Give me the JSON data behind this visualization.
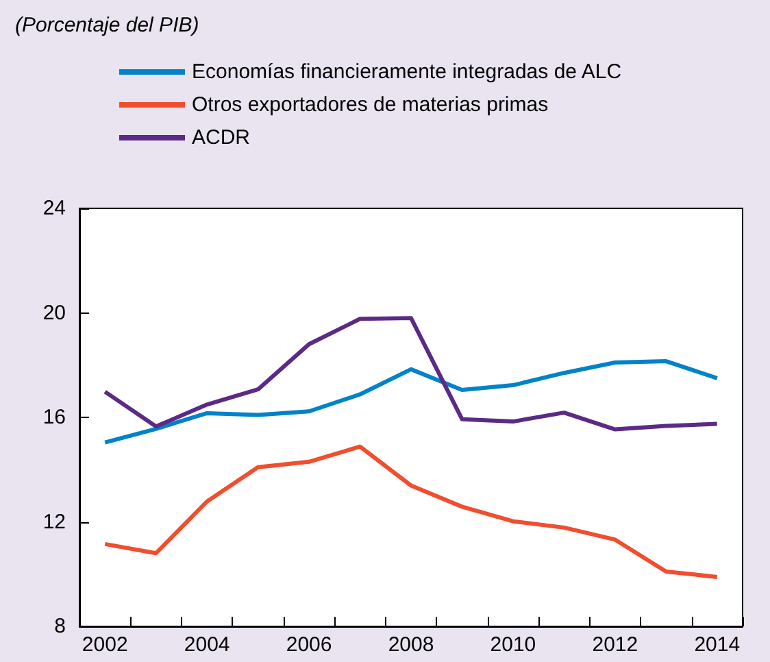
{
  "chart_data": {
    "type": "line",
    "subtitle": "(Porcentaje del PIB)",
    "categories": [
      "2002",
      null,
      "2004",
      null,
      "2006",
      null,
      "2008",
      null,
      "2010",
      null,
      "2012",
      null,
      "2014"
    ],
    "series": [
      {
        "name": "Economías financieramente integradas de ALC",
        "color": "#0083c9",
        "values": [
          15.04,
          15.56,
          16.16,
          16.09,
          16.23,
          16.88,
          17.84,
          17.05,
          17.23,
          17.7,
          18.1,
          18.15,
          17.5
        ]
      },
      {
        "name": "Otros exportadores de materias primas",
        "color": "#f04e2f",
        "values": [
          11.15,
          10.8,
          12.78,
          14.09,
          14.3,
          14.88,
          13.39,
          12.58,
          12.02,
          11.78,
          11.32,
          10.1,
          9.89
        ]
      },
      {
        "name": "ACDR",
        "color": "#5b2a86",
        "values": [
          16.98,
          15.65,
          16.49,
          17.07,
          18.8,
          19.77,
          19.8,
          15.93,
          15.84,
          16.18,
          15.54,
          15.67,
          15.75
        ]
      }
    ],
    "ylim": [
      8,
      24
    ],
    "yticks": [
      8,
      12,
      16,
      20,
      24
    ],
    "grid": false,
    "legend": "top",
    "marker": "none",
    "line_style": "solid"
  }
}
